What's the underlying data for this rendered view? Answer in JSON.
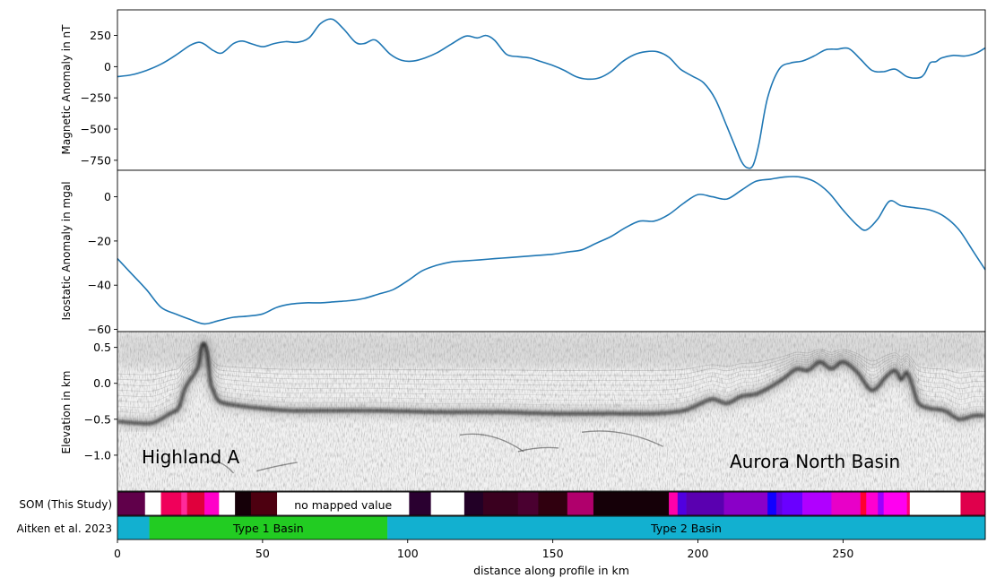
{
  "chart_data": [
    {
      "panel": "magnetic",
      "type": "line",
      "ylabel": "Magnetic Anomaly in nT",
      "ylim": [
        -830,
        455
      ],
      "xlim": [
        0,
        299
      ],
      "yticks": [
        250,
        0,
        -250,
        -500,
        -750
      ],
      "ytick_labels": [
        "250",
        "0",
        "−250",
        "−500",
        "−750"
      ],
      "line_color": "#1f77b4",
      "x": [
        0,
        5,
        10,
        15,
        20,
        25,
        28,
        30,
        33,
        36,
        40,
        43,
        46,
        50,
        54,
        58,
        62,
        66,
        70,
        74,
        78,
        82,
        85,
        88,
        90,
        94,
        98,
        102,
        106,
        110,
        115,
        120,
        124,
        127,
        130,
        134,
        138,
        142,
        146,
        150,
        154,
        158,
        162,
        166,
        170,
        174,
        178,
        182,
        186,
        190,
        194,
        198,
        202,
        206,
        210,
        213,
        215,
        217,
        219,
        221,
        224,
        228,
        232,
        236,
        240,
        244,
        248,
        252,
        256,
        260,
        264,
        268,
        272,
        276,
        278,
        280,
        282,
        284,
        288,
        292,
        296,
        299
      ],
      "y": [
        -80,
        -65,
        -30,
        20,
        90,
        170,
        195,
        180,
        130,
        110,
        185,
        205,
        185,
        160,
        185,
        200,
        195,
        230,
        345,
        380,
        300,
        195,
        185,
        215,
        195,
        100,
        50,
        45,
        70,
        110,
        180,
        245,
        230,
        250,
        210,
        100,
        80,
        70,
        40,
        10,
        -30,
        -80,
        -100,
        -90,
        -40,
        40,
        95,
        120,
        120,
        75,
        -20,
        -75,
        -130,
        -260,
        -480,
        -650,
        -760,
        -810,
        -790,
        -620,
        -250,
        -20,
        30,
        45,
        85,
        135,
        140,
        145,
        60,
        -30,
        -40,
        -20,
        -80,
        -90,
        -60,
        30,
        40,
        70,
        90,
        85,
        110,
        150
      ]
    },
    {
      "panel": "isostatic",
      "type": "line",
      "ylabel": "Isostatic Anomaly in mgal",
      "ylim": [
        -61,
        12
      ],
      "xlim": [
        0,
        299
      ],
      "yticks": [
        0,
        -20,
        -40,
        -60
      ],
      "ytick_labels": [
        "0",
        "−20",
        "−40",
        "−60"
      ],
      "line_color": "#1f77b4",
      "x": [
        0,
        5,
        10,
        15,
        20,
        25,
        30,
        35,
        40,
        45,
        50,
        55,
        60,
        65,
        70,
        75,
        80,
        85,
        90,
        95,
        100,
        105,
        110,
        115,
        120,
        125,
        130,
        135,
        140,
        145,
        150,
        155,
        160,
        165,
        170,
        175,
        180,
        185,
        190,
        195,
        200,
        205,
        210,
        215,
        220,
        225,
        230,
        235,
        240,
        245,
        250,
        255,
        258,
        262,
        266,
        270,
        275,
        280,
        285,
        290,
        295,
        299
      ],
      "y": [
        -28,
        -35,
        -42,
        -50,
        -53,
        -55.5,
        -57.5,
        -56,
        -54.5,
        -54,
        -53,
        -50,
        -48.5,
        -48,
        -48,
        -47.5,
        -47,
        -46,
        -44,
        -42,
        -38,
        -33.5,
        -31,
        -29.5,
        -29,
        -28.5,
        -28,
        -27.5,
        -27,
        -26.5,
        -26,
        -25,
        -24,
        -21,
        -18,
        -14,
        -11,
        -11,
        -8,
        -3,
        1,
        0,
        -1,
        3,
        7,
        8,
        9,
        9,
        7,
        2,
        -6,
        -13,
        -15,
        -10,
        -2,
        -4,
        -5,
        -6,
        -9,
        -15,
        -25,
        -33
      ]
    },
    {
      "panel": "radargram",
      "type": "heatmap",
      "ylabel": "Elevation in km",
      "ylim": [
        -1.5,
        0.72
      ],
      "xlim": [
        0,
        299
      ],
      "yticks": [
        0.5,
        0.0,
        -0.5,
        -1.0
      ],
      "ytick_labels": [
        "0.5",
        "0.0",
        "−0.5",
        "−1.0"
      ],
      "bed_x": [
        0,
        10,
        14,
        18,
        21,
        23,
        25,
        26,
        28,
        29,
        30,
        31,
        32,
        33,
        35,
        40,
        50,
        60,
        75,
        90,
        110,
        130,
        150,
        170,
        185,
        195,
        200,
        205,
        210,
        215,
        220,
        225,
        230,
        234,
        238,
        242,
        246,
        250,
        255,
        260,
        265,
        268,
        270,
        272,
        274,
        276,
        280,
        285,
        290,
        295,
        299
      ],
      "bed_y": [
        -0.53,
        -0.56,
        -0.52,
        -0.42,
        -0.35,
        -0.1,
        0.05,
        0.1,
        0.25,
        0.5,
        0.55,
        0.38,
        0.02,
        -0.1,
        -0.25,
        -0.3,
        -0.35,
        -0.38,
        -0.38,
        -0.38,
        -0.4,
        -0.4,
        -0.42,
        -0.42,
        -0.42,
        -0.38,
        -0.3,
        -0.22,
        -0.28,
        -0.18,
        -0.15,
        -0.05,
        0.08,
        0.2,
        0.18,
        0.3,
        0.2,
        0.3,
        0.15,
        -0.1,
        0.1,
        0.18,
        0.05,
        0.15,
        -0.05,
        -0.28,
        -0.35,
        -0.38,
        -0.5,
        -0.45,
        -0.45
      ],
      "annotations": [
        "Highland A",
        "Aurora North Basin"
      ]
    },
    {
      "panel": "som",
      "type": "table",
      "label": "SOM (This Study)",
      "xlim": [
        0,
        299
      ],
      "segments": [
        {
          "x0": 0,
          "x1": 9.5,
          "color": "#60004a"
        },
        {
          "x0": 9.5,
          "x1": 15,
          "color": "#ffffff"
        },
        {
          "x0": 15,
          "x1": 22,
          "color": "#f0005a"
        },
        {
          "x0": 22,
          "x1": 24,
          "color": "#ff2a9a"
        },
        {
          "x0": 24,
          "x1": 30,
          "color": "#e0003c"
        },
        {
          "x0": 30,
          "x1": 35,
          "color": "#ff00c8"
        },
        {
          "x0": 35,
          "x1": 40.5,
          "color": "#ffffff"
        },
        {
          "x0": 40.5,
          "x1": 46,
          "color": "#150008"
        },
        {
          "x0": 46,
          "x1": 55,
          "color": "#4d0010"
        },
        {
          "x0": 55,
          "x1": 100.5,
          "color": "#ffffff",
          "label": "no mapped value"
        },
        {
          "x0": 100.5,
          "x1": 108,
          "color": "#2a0030"
        },
        {
          "x0": 108,
          "x1": 119.5,
          "color": "#ffffff"
        },
        {
          "x0": 119.5,
          "x1": 126,
          "color": "#220026"
        },
        {
          "x0": 126,
          "x1": 138,
          "color": "#3a001f"
        },
        {
          "x0": 138,
          "x1": 145,
          "color": "#4a0030"
        },
        {
          "x0": 145,
          "x1": 155,
          "color": "#30000f"
        },
        {
          "x0": 155,
          "x1": 164,
          "color": "#b0006c"
        },
        {
          "x0": 164,
          "x1": 190,
          "color": "#150008"
        },
        {
          "x0": 190,
          "x1": 193,
          "color": "#ff00aa"
        },
        {
          "x0": 193,
          "x1": 196,
          "color": "#5000e0"
        },
        {
          "x0": 196,
          "x1": 209,
          "color": "#5a00b0"
        },
        {
          "x0": 209,
          "x1": 224,
          "color": "#8a00c8"
        },
        {
          "x0": 224,
          "x1": 227,
          "color": "#1000ff"
        },
        {
          "x0": 227,
          "x1": 229,
          "color": "#6000e0"
        },
        {
          "x0": 229,
          "x1": 236,
          "color": "#6a00ff"
        },
        {
          "x0": 236,
          "x1": 246,
          "color": "#b000ff"
        },
        {
          "x0": 246,
          "x1": 256,
          "color": "#e800c8"
        },
        {
          "x0": 256,
          "x1": 258,
          "color": "#ff0030"
        },
        {
          "x0": 258,
          "x1": 262,
          "color": "#ff00d0"
        },
        {
          "x0": 262,
          "x1": 264,
          "color": "#9a00ff"
        },
        {
          "x0": 264,
          "x1": 272,
          "color": "#ff00f0"
        },
        {
          "x0": 272,
          "x1": 273,
          "color": "#ff0070"
        },
        {
          "x0": 273,
          "x1": 290.5,
          "color": "#ffffff"
        },
        {
          "x0": 290.5,
          "x1": 299,
          "color": "#e0004c"
        }
      ]
    },
    {
      "panel": "aitken",
      "type": "table",
      "label": "Aitken et al. 2023",
      "xlim": [
        0,
        299
      ],
      "segments": [
        {
          "x0": 0,
          "x1": 11,
          "color": "#12b0d0"
        },
        {
          "x0": 11,
          "x1": 93,
          "color": "#22cc22",
          "label": "Type 1 Basin"
        },
        {
          "x0": 93,
          "x1": 299,
          "color": "#12b0d0",
          "label": "Type 2 Basin"
        }
      ]
    }
  ],
  "xaxis": {
    "label": "distance along profile in km",
    "ticks": [
      0,
      50,
      100,
      150,
      200,
      250
    ],
    "tick_labels": [
      "0",
      "50",
      "100",
      "150",
      "200",
      "250"
    ]
  }
}
